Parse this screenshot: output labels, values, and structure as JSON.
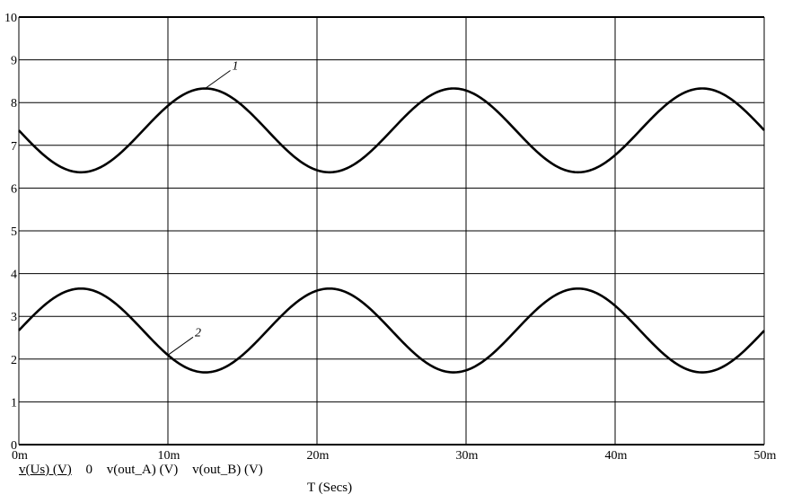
{
  "chart_data": {
    "type": "line",
    "xlabel": "T (Secs)",
    "xlim": [
      0,
      0.05
    ],
    "ylim": [
      0,
      10
    ],
    "x_ticks": [
      {
        "value": 0,
        "label": "0m"
      },
      {
        "value": 0.01,
        "label": "10m"
      },
      {
        "value": 0.02,
        "label": "20m"
      },
      {
        "value": 0.03,
        "label": "30m"
      },
      {
        "value": 0.04,
        "label": "40m"
      },
      {
        "value": 0.05,
        "label": "50m"
      }
    ],
    "y_ticks": [
      {
        "value": 0,
        "label": "0"
      },
      {
        "value": 1,
        "label": "1"
      },
      {
        "value": 2,
        "label": "2"
      },
      {
        "value": 3,
        "label": "3"
      },
      {
        "value": 4,
        "label": "4"
      },
      {
        "value": 5,
        "label": "5"
      },
      {
        "value": 6,
        "label": "6"
      },
      {
        "value": 7,
        "label": "7"
      },
      {
        "value": 8,
        "label": "8"
      },
      {
        "value": 9,
        "label": "9"
      },
      {
        "value": 10,
        "label": "10"
      }
    ],
    "grid": true,
    "legend_position": "bottom-left",
    "legend": [
      "v(Us) (V)",
      "0",
      "v(out_A) (V)",
      "v(out_B) (V)"
    ],
    "series": [
      {
        "label": "1",
        "label_anchor_x": 0.0125,
        "offset": 7.35,
        "amplitude": 0.98,
        "period": 0.01667,
        "phase_deg": 0,
        "color": "#000000",
        "x": [
          0,
          0.002,
          0.004,
          0.006,
          0.008,
          0.01,
          0.0125,
          0.015,
          0.0167,
          0.019,
          0.021,
          0.023,
          0.025,
          0.0292,
          0.0333,
          0.0375,
          0.0417,
          0.0458,
          0.05
        ],
        "y": [
          7.35,
          6.72,
          6.38,
          6.44,
          6.99,
          7.93,
          8.33,
          7.95,
          7.35,
          6.6,
          6.37,
          6.75,
          7.35,
          8.33,
          7.35,
          6.37,
          7.35,
          8.33,
          7.35
        ]
      },
      {
        "label": "2",
        "label_anchor_x": 0.01,
        "offset": 2.67,
        "amplitude": 0.98,
        "period": 0.01667,
        "phase_deg": 180,
        "color": "#000000",
        "x": [
          0,
          0.002,
          0.004,
          0.006,
          0.008,
          0.01,
          0.0125,
          0.015,
          0.0167,
          0.019,
          0.021,
          0.023,
          0.025,
          0.0292,
          0.0333,
          0.0375,
          0.0417,
          0.0458,
          0.05
        ],
        "y": [
          2.67,
          3.3,
          3.64,
          3.58,
          3.03,
          2.09,
          1.69,
          2.07,
          2.67,
          3.42,
          3.65,
          3.27,
          2.67,
          1.69,
          2.67,
          3.65,
          2.67,
          1.69,
          2.67
        ]
      }
    ]
  }
}
